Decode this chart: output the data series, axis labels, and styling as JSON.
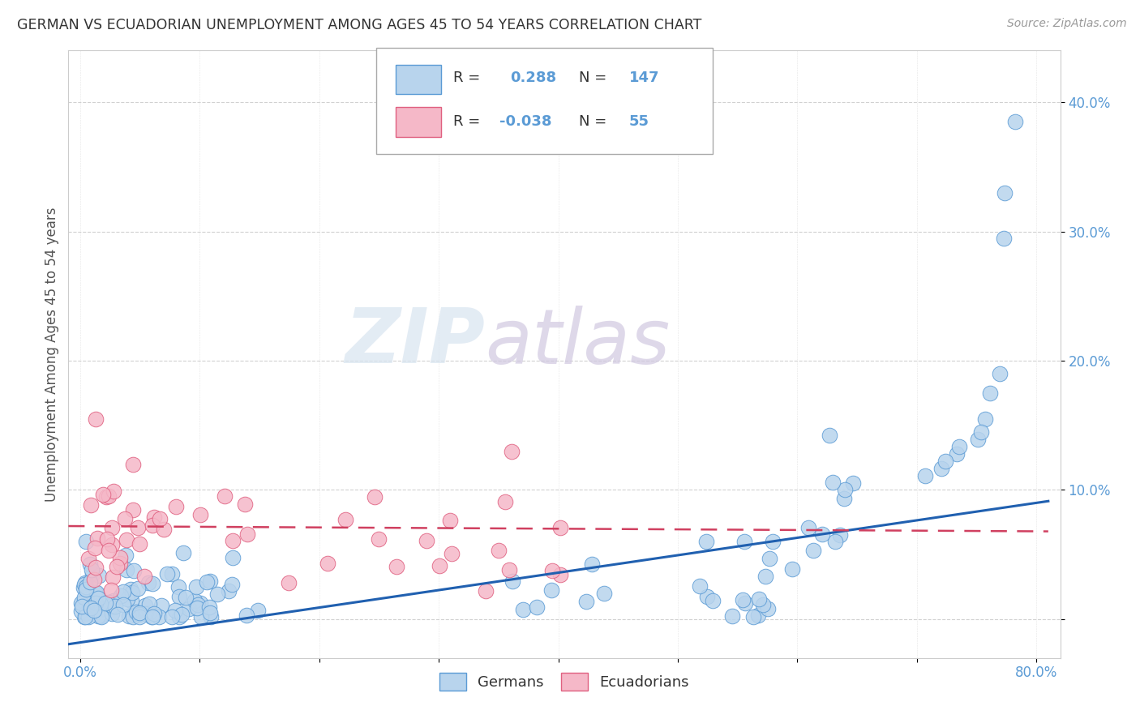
{
  "title": "GERMAN VS ECUADORIAN UNEMPLOYMENT AMONG AGES 45 TO 54 YEARS CORRELATION CHART",
  "source": "Source: ZipAtlas.com",
  "ylabel": "Unemployment Among Ages 45 to 54 years",
  "xlim": [
    -0.01,
    0.82
  ],
  "ylim": [
    -0.03,
    0.44
  ],
  "german_R": 0.288,
  "german_N": 147,
  "ecuadorian_R": -0.038,
  "ecuadorian_N": 55,
  "german_color": "#b8d4ed",
  "ecuadorian_color": "#f5b8c8",
  "german_edge_color": "#5b9bd5",
  "ecuadorian_edge_color": "#e06080",
  "german_line_color": "#2060b0",
  "ecuadorian_line_color": "#d04060",
  "watermark_zip": "ZIP",
  "watermark_atlas": "atlas",
  "background_color": "#ffffff",
  "grid_color": "#cccccc",
  "title_color": "#333333",
  "tick_color": "#5b9bd5",
  "ytick_values": [
    0.0,
    0.1,
    0.2,
    0.3,
    0.4
  ],
  "ytick_labels": [
    "",
    "10.0%",
    "20.0%",
    "30.0%",
    "40.0%"
  ],
  "xtick_values": [
    0.0,
    0.1,
    0.2,
    0.3,
    0.4,
    0.5,
    0.6,
    0.7,
    0.8
  ],
  "xtick_labels": [
    "0.0%",
    "",
    "",
    "",
    "",
    "",
    "",
    "",
    "80.0%"
  ]
}
